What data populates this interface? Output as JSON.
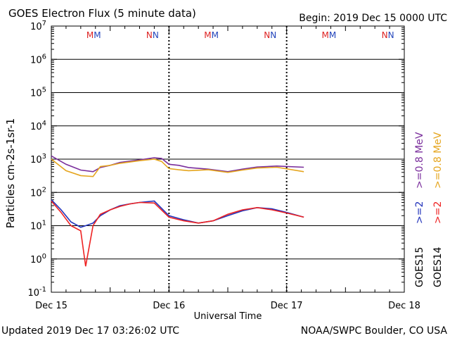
{
  "header": {
    "title": "GOES Electron Flux (5 minute data)",
    "begin": "Begin: 2019 Dec 15 0000 UTC"
  },
  "footer": {
    "updated": "Updated 2019 Dec 17 03:26:02 UTC",
    "credit": "NOAA/SWPC Boulder, CO USA"
  },
  "colors": {
    "goes15_high": "#7a2e9c",
    "goes14_high": "#e5a51e",
    "goes15_low": "#2233bb",
    "goes14_low": "#ee2222",
    "marker_m": "#dd2222",
    "marker_m2": "#2244bb",
    "marker_n": "#dd2222",
    "marker_n2": "#2244bb"
  },
  "chart_data": {
    "type": "line",
    "title": "GOES Electron Flux (5 minute data)",
    "xlabel": "Universal Time",
    "ylabel": "Particles cm-2s-1sr-1",
    "yscale": "log",
    "ylim": [
      0.1,
      10000000
    ],
    "xlim": [
      "2019-12-15 00:00",
      "2019-12-18 00:00"
    ],
    "x_ticks": [
      "Dec 15",
      "Dec 16",
      "Dec 17",
      "Dec 18"
    ],
    "y_ticks": [
      {
        "base": "10",
        "exp": "7"
      },
      {
        "base": "10",
        "exp": "6"
      },
      {
        "base": "10",
        "exp": "5"
      },
      {
        "base": "10",
        "exp": "4"
      },
      {
        "base": "10",
        "exp": "3"
      },
      {
        "base": "10",
        "exp": "2"
      },
      {
        "base": "10",
        "exp": "1"
      },
      {
        "base": "10",
        "exp": "0"
      },
      {
        "base": "10",
        "exp": "-1"
      }
    ],
    "threshold": 1000,
    "grid": true,
    "legend_right": [
      {
        "sat": "GOES15",
        "label": ">=2",
        "high_label": ">=0.8 MeV"
      },
      {
        "sat": "GOES14",
        "label": ">=2",
        "high_label": ">=0.8 MeV"
      }
    ],
    "day_markers": [
      {
        "label": "MM"
      },
      {
        "label": "NN"
      },
      {
        "label": "MM"
      },
      {
        "label": "NN"
      },
      {
        "label": "MM"
      },
      {
        "label": "NN"
      }
    ],
    "series": [
      {
        "name": "GOES15 >=0.8 MeV",
        "x": [
          "2019-12-15 00:00",
          "2019-12-15 03:00",
          "2019-12-15 06:00",
          "2019-12-15 08:30",
          "2019-12-15 10:00",
          "2019-12-15 12:00",
          "2019-12-15 14:00",
          "2019-12-15 18:00",
          "2019-12-15 21:00",
          "2019-12-15 22:30",
          "2019-12-16 00:00",
          "2019-12-16 02:00",
          "2019-12-16 04:00",
          "2019-12-16 08:00",
          "2019-12-16 12:00",
          "2019-12-16 15:00",
          "2019-12-16 18:00",
          "2019-12-16 22:00",
          "2019-12-17 03:30"
        ],
        "y": [
          1250,
          700,
          470,
          420,
          560,
          650,
          800,
          950,
          1100,
          1050,
          700,
          650,
          560,
          500,
          420,
          500,
          580,
          620,
          570
        ]
      },
      {
        "name": "GOES14 >=0.8 MeV",
        "x": [
          "2019-12-15 00:00",
          "2019-12-15 03:00",
          "2019-12-15 06:00",
          "2019-12-15 08:30",
          "2019-12-15 10:00",
          "2019-12-15 12:00",
          "2019-12-15 14:00",
          "2019-12-15 18:00",
          "2019-12-15 21:00",
          "2019-12-15 22:30",
          "2019-12-16 00:00",
          "2019-12-16 02:00",
          "2019-12-16 04:00",
          "2019-12-16 08:00",
          "2019-12-16 12:00",
          "2019-12-16 15:00",
          "2019-12-16 18:00",
          "2019-12-16 22:00",
          "2019-12-17 03:30"
        ],
        "y": [
          1000,
          450,
          320,
          300,
          600,
          650,
          750,
          900,
          1000,
          850,
          520,
          480,
          450,
          480,
          400,
          470,
          540,
          570,
          420
        ]
      },
      {
        "name": "GOES15 >=2 MeV",
        "x": [
          "2019-12-15 00:00",
          "2019-12-15 02:00",
          "2019-12-15 04:00",
          "2019-12-15 06:00",
          "2019-12-15 07:00",
          "2019-12-15 08:30",
          "2019-12-15 10:00",
          "2019-12-15 12:00",
          "2019-12-15 14:00",
          "2019-12-15 16:00",
          "2019-12-15 18:00",
          "2019-12-15 21:00",
          "2019-12-16 00:00",
          "2019-12-16 03:00",
          "2019-12-16 06:00",
          "2019-12-16 09:00",
          "2019-12-16 12:00",
          "2019-12-16 15:00",
          "2019-12-16 18:00",
          "2019-12-16 21:00",
          "2019-12-17 00:00",
          "2019-12-17 03:30"
        ],
        "y": [
          60,
          30,
          13,
          9,
          10,
          12,
          20,
          30,
          40,
          45,
          50,
          55,
          20,
          15,
          12,
          14,
          20,
          28,
          35,
          32,
          25,
          18
        ]
      },
      {
        "name": "GOES14 >=2 MeV",
        "x": [
          "2019-12-15 00:00",
          "2019-12-15 02:00",
          "2019-12-15 04:00",
          "2019-12-15 06:00",
          "2019-12-15 07:00",
          "2019-12-15 08:30",
          "2019-12-15 10:00",
          "2019-12-15 12:00",
          "2019-12-15 14:00",
          "2019-12-15 16:00",
          "2019-12-15 18:00",
          "2019-12-15 21:00",
          "2019-12-16 00:00",
          "2019-12-16 03:00",
          "2019-12-16 06:00",
          "2019-12-16 09:00",
          "2019-12-16 12:00",
          "2019-12-16 15:00",
          "2019-12-16 18:00",
          "2019-12-16 21:00",
          "2019-12-17 00:00",
          "2019-12-17 03:30"
        ],
        "y": [
          55,
          25,
          10,
          7,
          0.6,
          10,
          22,
          30,
          38,
          45,
          50,
          48,
          18,
          14,
          12,
          14,
          22,
          30,
          35,
          30,
          24,
          18
        ]
      }
    ]
  }
}
